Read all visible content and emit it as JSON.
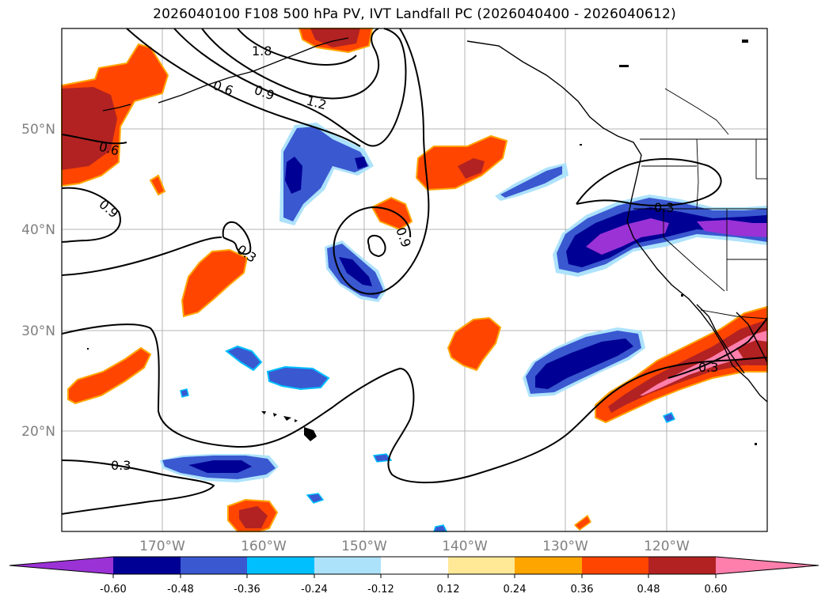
{
  "title": "2026040100 F108 500 hPa PV, IVT Landfall PC (2026040400 - 2026040612)",
  "map": {
    "lon_range": [
      -180,
      -110
    ],
    "lat_range": [
      10,
      60
    ],
    "lat_ticks": [
      {
        "value": 50,
        "label": "50°N"
      },
      {
        "value": 40,
        "label": "40°N"
      },
      {
        "value": 30,
        "label": "30°N"
      },
      {
        "value": 20,
        "label": "20°N"
      }
    ],
    "lon_ticks": [
      {
        "value": -170,
        "label": "170°W"
      },
      {
        "value": -160,
        "label": "160°W"
      },
      {
        "value": -150,
        "label": "150°W"
      },
      {
        "value": -140,
        "label": "140°W"
      },
      {
        "value": -130,
        "label": "130°W"
      },
      {
        "value": -120,
        "label": "120°W"
      }
    ],
    "contour_labels": [
      "1.8",
      "0.6",
      "0.9",
      "1.2",
      "0.6",
      "0.9",
      "0.3",
      "0.9",
      "0.3",
      "0.3",
      "0.3"
    ]
  },
  "colorbar": {
    "levels": [
      "-0.60",
      "-0.48",
      "-0.36",
      "-0.24",
      "-0.12",
      "0.12",
      "0.24",
      "0.36",
      "0.48",
      "0.60"
    ],
    "colors": [
      "#9b32d6",
      "#000094",
      "#3a58d0",
      "#00bfff",
      "#ade2fb",
      "#ffffff",
      "#ffe896",
      "#ffa500",
      "#ff4500",
      "#b22222",
      "#ff7fac"
    ]
  }
}
